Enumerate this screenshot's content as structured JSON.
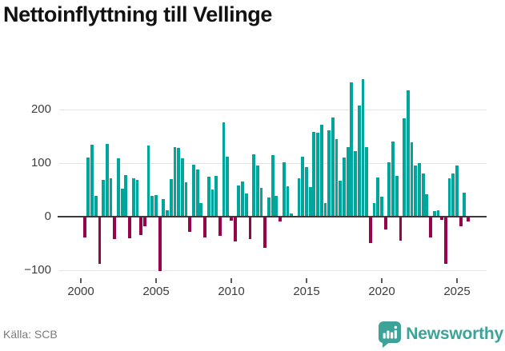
{
  "header": {
    "title": "Nettoinflyttning till Vellinge"
  },
  "footer": {
    "source": "Källa: SCB",
    "brand": "Newsworthy"
  },
  "colors": {
    "positive_bar": "#00A69C",
    "negative_bar": "#98034B",
    "gridline": "#E4E4E4",
    "zero_axis": "#3A3A3A",
    "axis_text": "#3D3D3D",
    "title_text": "#121212",
    "source_text": "#7B7B7B",
    "brand_teal": "#3DA399"
  },
  "chart_data": {
    "type": "bar",
    "title": "Nettoinflyttning till Vellinge",
    "frequency": "quarterly",
    "x_start": "2000 Q1",
    "x_end": "2025 Q3",
    "x_axis": {
      "tick_years": [
        2000,
        2005,
        2010,
        2015,
        2020,
        2025
      ],
      "tick_labels": [
        "2000",
        "2005",
        "2010",
        "2015",
        "2020",
        "2025"
      ]
    },
    "y_axis": {
      "tick_values": [
        200,
        100,
        0,
        -100
      ],
      "tick_labels": [
        "200",
        "100",
        "0",
        "−100"
      ]
    },
    "ylim": [
      -112,
      263
    ],
    "grid": true,
    "legend": "none",
    "series": [
      {
        "name": "Nettoinflyttning",
        "values": [
          -37,
          110,
          133,
          37,
          -87,
          68,
          135,
          70,
          -40,
          108,
          51,
          77,
          -39,
          70,
          67,
          -33,
          -17,
          131,
          37,
          39,
          -100,
          31,
          11,
          69,
          128,
          127,
          108,
          63,
          -27,
          96,
          87,
          24,
          -37,
          73,
          50,
          75,
          -34,
          175,
          111,
          -6,
          -45,
          57,
          65,
          42,
          -40,
          115,
          94,
          52,
          -57,
          35,
          114,
          37,
          -8,
          100,
          55,
          4,
          0,
          70,
          111,
          91,
          54,
          157,
          155,
          170,
          24,
          160,
          184,
          144,
          66,
          109,
          129,
          250,
          121,
          206,
          256,
          129,
          -48,
          24,
          72,
          36,
          -23,
          100,
          139,
          75,
          -43,
          183,
          235,
          138,
          95,
          99,
          79,
          41,
          -38,
          9,
          11,
          -4,
          -87,
          71,
          80,
          95,
          -17,
          43,
          -7
        ]
      }
    ]
  }
}
